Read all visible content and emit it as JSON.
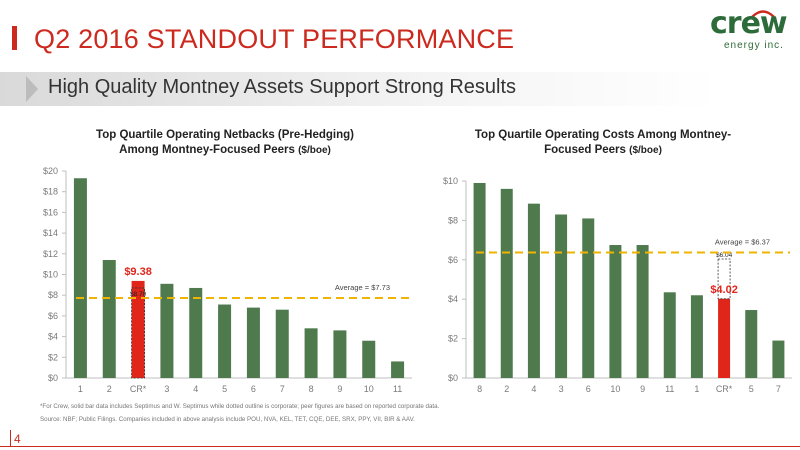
{
  "header": {
    "title": "Q2 2016 STANDOUT PERFORMANCE",
    "subtitle": "High Quality Montney Assets Support Strong Results"
  },
  "logo": {
    "word": "crew",
    "sub": "energy inc."
  },
  "colors": {
    "accent": "#cc2a1e",
    "bar": "#4e7a4e",
    "highlight": "#e0251b",
    "average": "#f0b400",
    "logo": "#2e6b3a"
  },
  "chart_data": [
    {
      "type": "bar",
      "title_line1": "Top Quartile Operating Netbacks (Pre-Hedging)",
      "title_line2": "Among Montney-Focused Peers",
      "title_unit": "($/boe)",
      "categories": [
        "1",
        "2",
        "CR*",
        "3",
        "4",
        "5",
        "6",
        "7",
        "8",
        "9",
        "10",
        "11"
      ],
      "values": [
        19.3,
        11.4,
        9.38,
        9.1,
        8.7,
        7.1,
        6.8,
        6.6,
        4.8,
        4.6,
        3.6,
        1.6
      ],
      "highlight_index": 2,
      "highlight_label": "$9.38",
      "inner_value": 8.7,
      "inner_label": "$8.70",
      "average": 7.73,
      "average_label": "Average = $7.73",
      "ylim": [
        0,
        20
      ],
      "yticks": [
        "$0",
        "$2",
        "$4",
        "$6",
        "$8",
        "$10",
        "$12",
        "$14",
        "$16",
        "$18",
        "$20"
      ],
      "grid": false
    },
    {
      "type": "bar",
      "title_line1": "Top Quartile Operating Costs Among Montney-",
      "title_line2": "Focused Peers",
      "title_unit": "($/boe)",
      "categories": [
        "8",
        "2",
        "4",
        "3",
        "6",
        "10",
        "9",
        "11",
        "1",
        "CR*",
        "5",
        "7"
      ],
      "values": [
        9.9,
        9.6,
        8.85,
        8.3,
        8.1,
        6.75,
        6.75,
        4.35,
        4.2,
        4.02,
        3.45,
        1.9
      ],
      "highlight_index": 9,
      "highlight_label": "$4.02",
      "outer_value": 6.04,
      "outer_label": "$6.04",
      "average": 6.37,
      "average_label": "Average = $6.37",
      "ylim": [
        0,
        10
      ],
      "yticks": [
        "$0",
        "$2",
        "$4",
        "$6",
        "$8",
        "$10"
      ],
      "grid": false
    }
  ],
  "footnotes": {
    "line1": "*For Crew, solid bar data includes Septimus and W. Septimus while dotted outline is corporate; peer figures are based on reported corporate data.",
    "line2": "Source: NBF; Public Filings.  Companies included in above analysis include POU, NVA, KEL, TET, CQE, DEE, SRX, PPY, VII, BIR & AAV."
  },
  "page": {
    "number": "4"
  }
}
